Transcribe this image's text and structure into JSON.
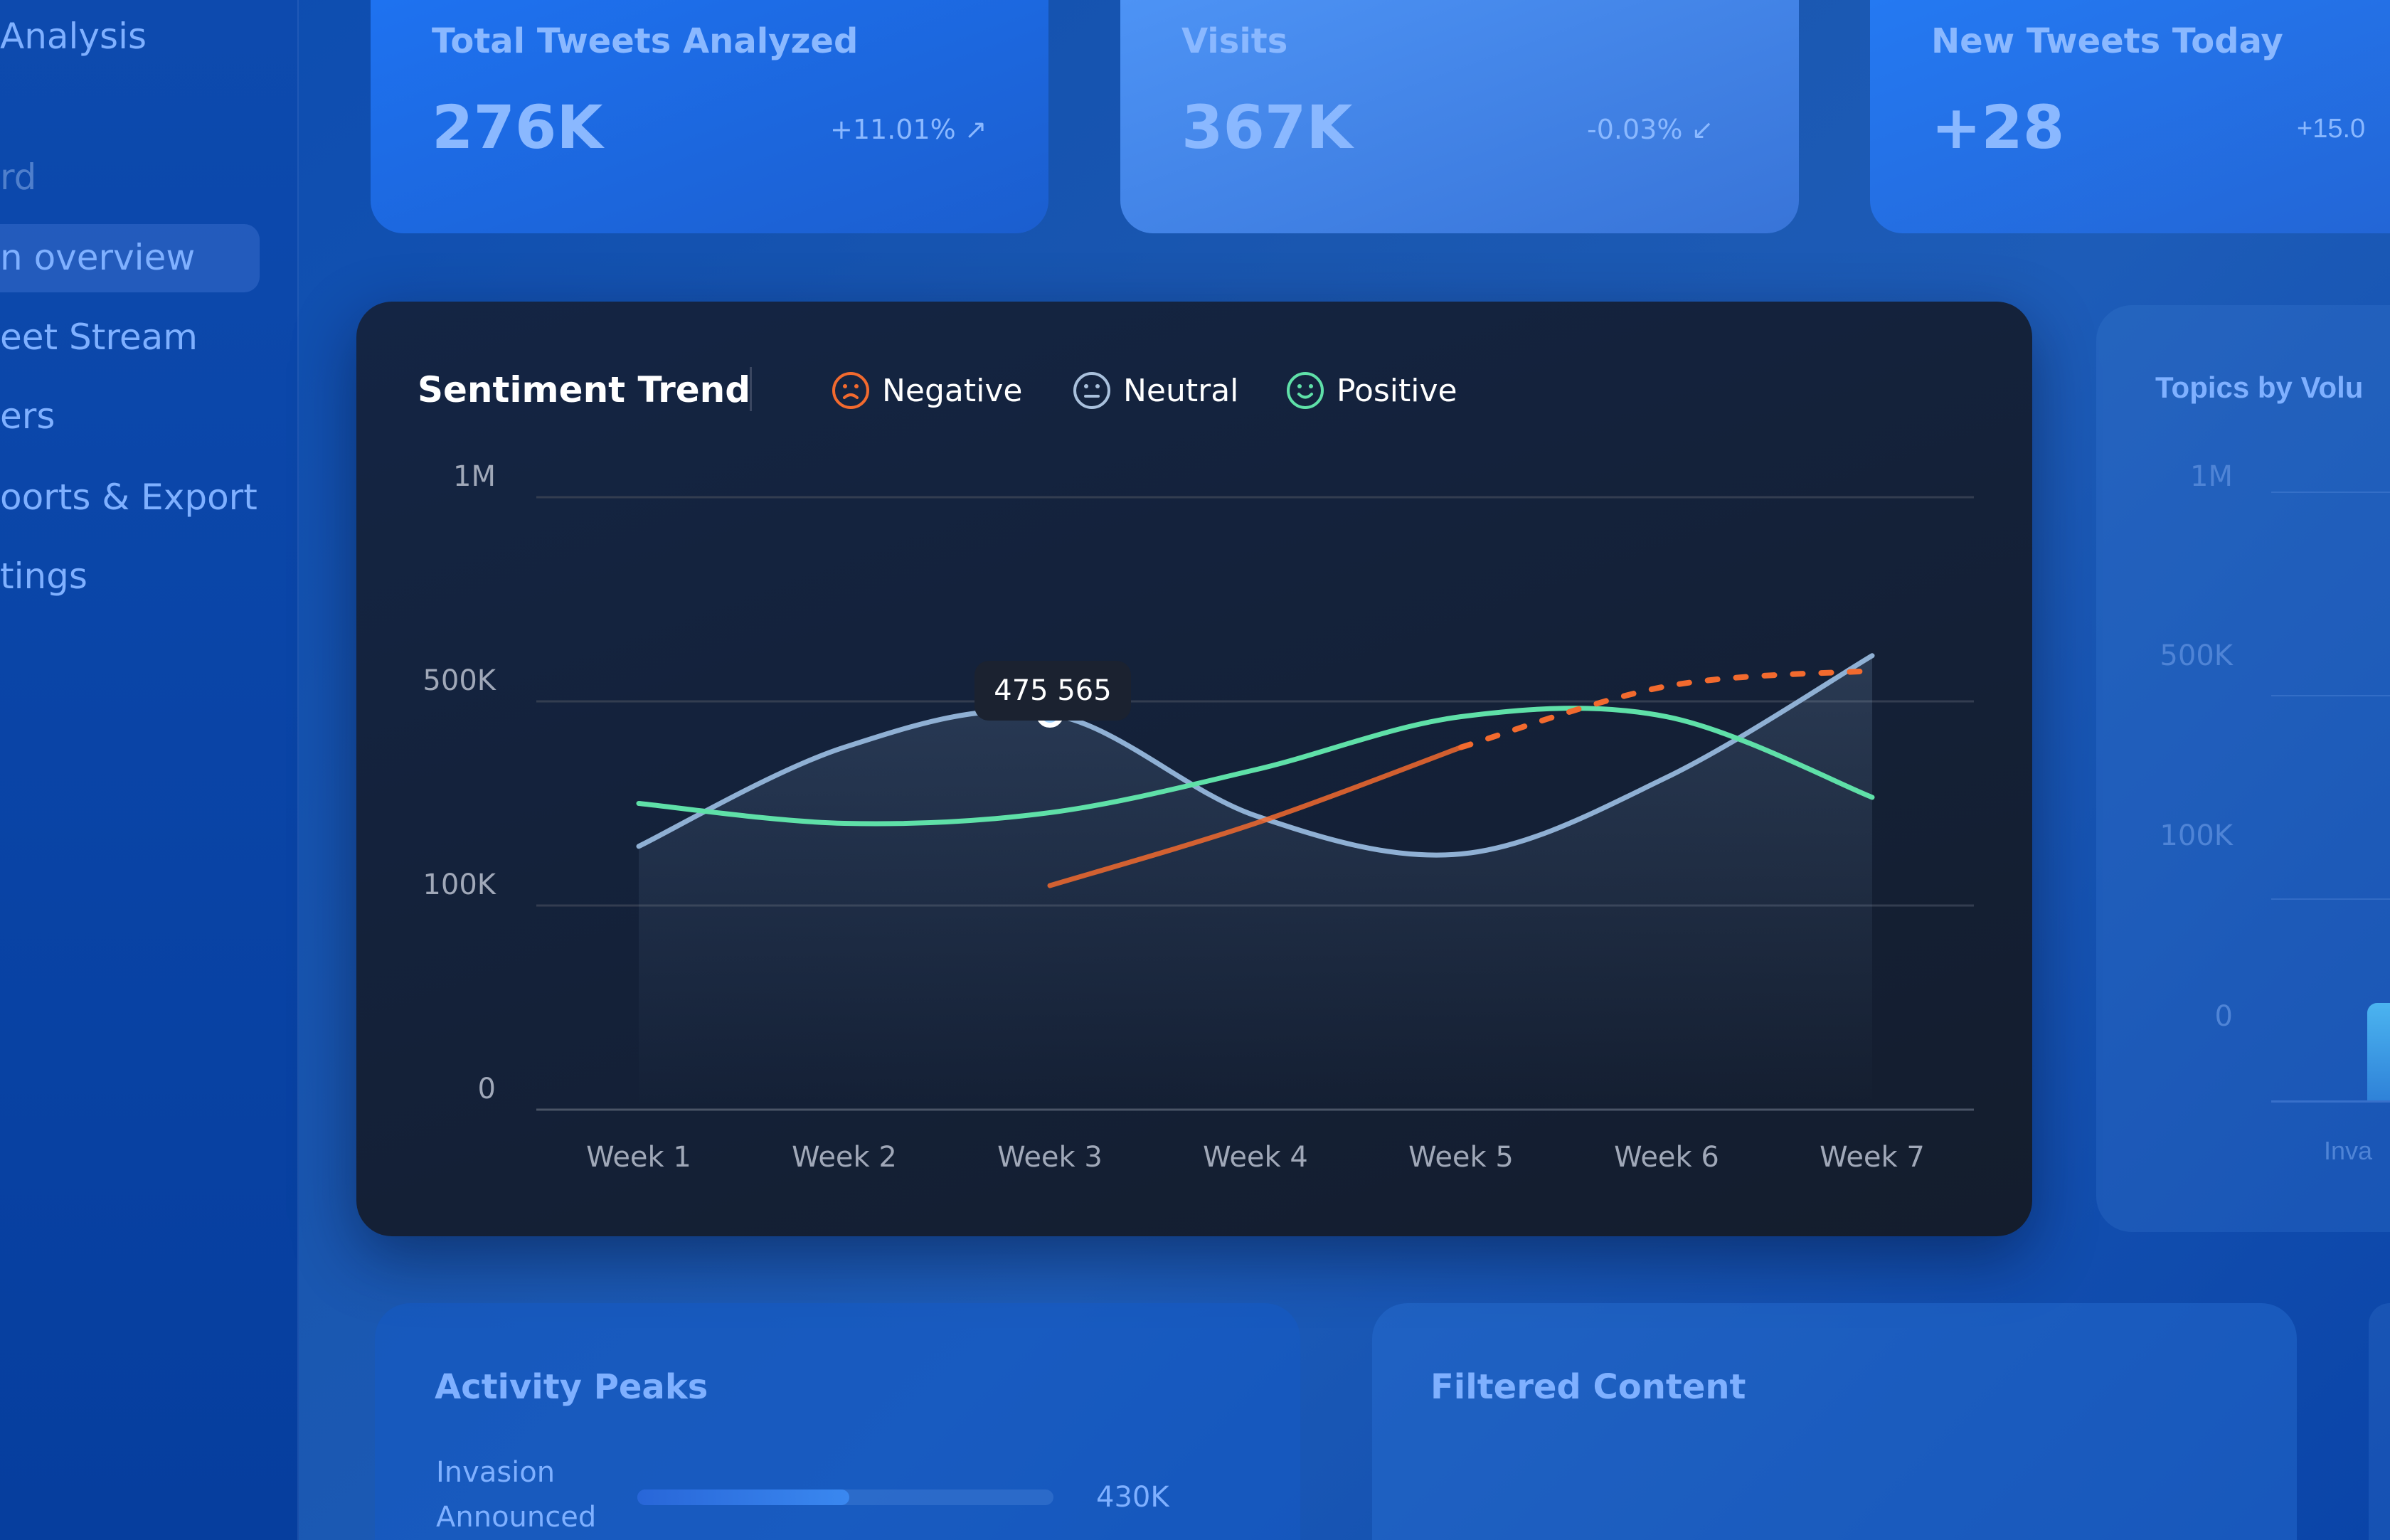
{
  "sidebar": {
    "app_title_fragment": "Analysis",
    "section_fragment": "rd",
    "items": [
      {
        "label": "n overview",
        "active": true
      },
      {
        "label": "eet Stream"
      },
      {
        "label": "ers"
      },
      {
        "label": "oorts & Export"
      },
      {
        "label": "tings"
      }
    ]
  },
  "stats": [
    {
      "title": "Total Tweets Analyzed",
      "value": "276K",
      "delta": "+11.01%",
      "trend_icon": "trend-up-icon"
    },
    {
      "title": "Visits",
      "value": "367K",
      "delta": "-0.03%",
      "trend_icon": "trend-down-icon"
    },
    {
      "title": "New Tweets Today",
      "value": "+28",
      "delta": "+15.0"
    }
  ],
  "sentiment": {
    "title": "Sentiment Trend",
    "tooltip": "475 565",
    "legend": [
      {
        "name": "Negative",
        "icon": "frown-icon",
        "color": "#f26a2e"
      },
      {
        "name": "Neutral",
        "icon": "neutral-face-icon",
        "color": "#a9c0dc"
      },
      {
        "name": "Positive",
        "icon": "smile-icon",
        "color": "#5fe0a8"
      }
    ]
  },
  "chart_data": {
    "type": "line",
    "title": "Sentiment Trend",
    "categories": [
      "Week 1",
      "Week 2",
      "Week 3",
      "Week 4",
      "Week 5",
      "Week 6",
      "Week 7"
    ],
    "y_ticks": [
      "0",
      "100K",
      "500K",
      "1M"
    ],
    "y_tick_values": [
      0,
      100000,
      500000,
      1000000
    ],
    "grid": true,
    "legend": "top-left",
    "series": [
      {
        "name": "Neutral",
        "color": "#8fb0d4",
        "values": [
          216000,
          410000,
          475565,
          276000,
          201000,
          351000,
          612000
        ]
      },
      {
        "name": "Positive",
        "color": "#5fe0a8",
        "values": [
          300000,
          261000,
          282000,
          366000,
          470000,
          470000,
          312000
        ]
      },
      {
        "name": "Negative",
        "color": "#f26a2e",
        "values": [
          null,
          null,
          139000,
          261000,
          410000,
          537000,
          575000
        ]
      }
    ]
  },
  "topics": {
    "title": "Topics by Volu",
    "y_ticks": [
      "1M",
      "500K",
      "100K",
      "0"
    ],
    "x_label_fragment": "Inva"
  },
  "activity": {
    "title": "Activity Peaks",
    "items": [
      {
        "label_line1": "Invasion",
        "label_line2": "Announced",
        "value": "430K",
        "fraction": 0.51
      }
    ]
  },
  "filtered": {
    "title": "Filtered Content"
  }
}
